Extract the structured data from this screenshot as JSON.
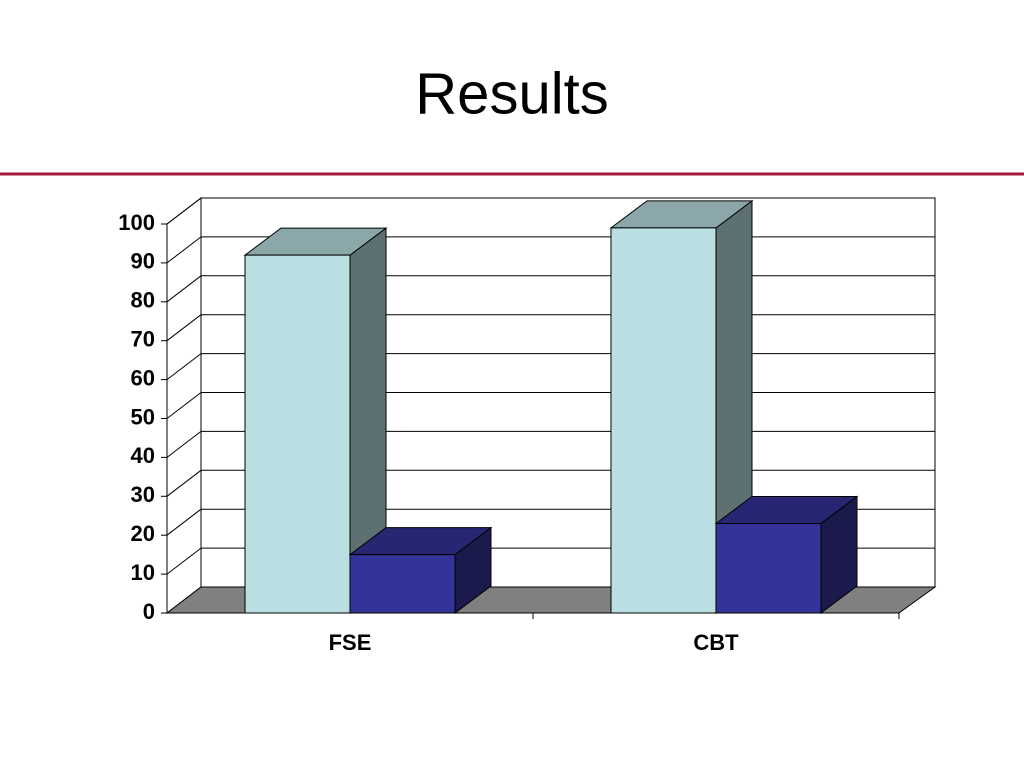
{
  "chart_data": {
    "type": "bar3d",
    "title": "Results",
    "categories": [
      "FSE",
      "CBT"
    ],
    "series": [
      {
        "color": "#b9dfe3",
        "values": [
          92,
          99
        ]
      },
      {
        "color": "#333399",
        "values": [
          15,
          23
        ]
      }
    ],
    "ylim": [
      0,
      100
    ],
    "yticks": [
      0,
      10,
      20,
      30,
      40,
      50,
      60,
      70,
      80,
      90,
      100
    ],
    "grid": true
  }
}
